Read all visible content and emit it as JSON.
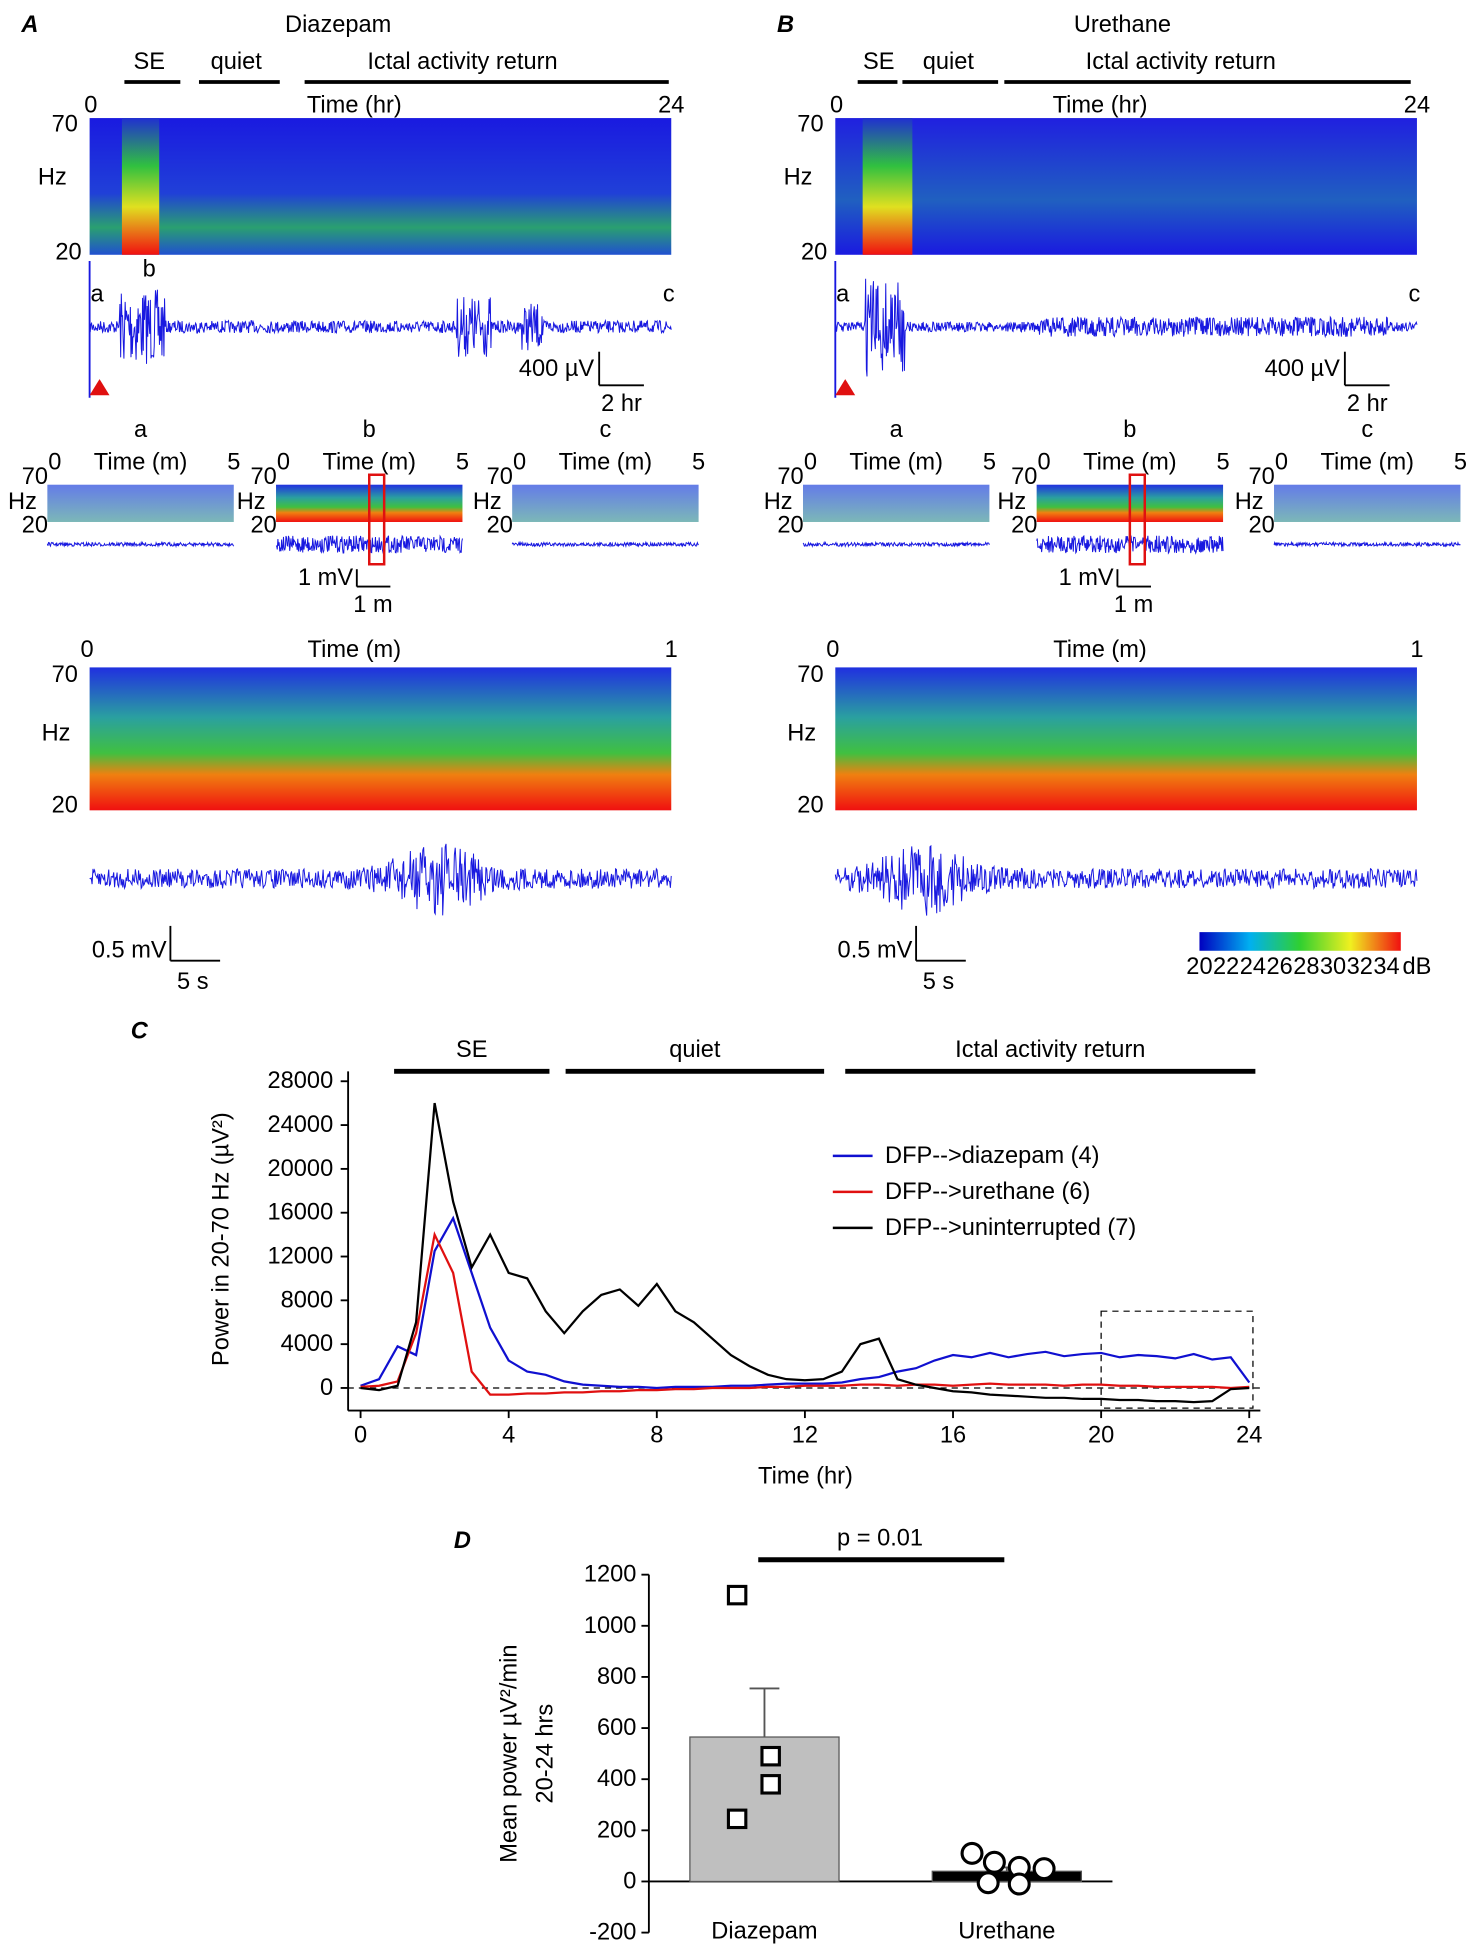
{
  "panel_a": {
    "label": "A",
    "title": "Diazepam",
    "phases": [
      "SE",
      "quiet",
      "Ictal activity return"
    ],
    "overview": {
      "x_start": "0",
      "x_label": "Time (hr)",
      "x_end": "24",
      "y_top": "70",
      "y_unit": "Hz",
      "y_bottom": "20",
      "markers": [
        "a",
        "b",
        "c"
      ],
      "scale_v": "400 µV",
      "scale_t": "2 hr"
    },
    "epochs": [
      {
        "label": "a",
        "x_start": "0",
        "x_label": "Time (m)",
        "x_end": "5",
        "y_top": "70",
        "y_unit": "Hz",
        "y_bottom": "20"
      },
      {
        "label": "b",
        "x_start": "0",
        "x_label": "Time (m)",
        "x_end": "5",
        "y_top": "70",
        "y_unit": "Hz",
        "y_bottom": "20"
      },
      {
        "label": "c",
        "x_start": "0",
        "x_label": "Time (m)",
        "x_end": "5",
        "y_top": "70",
        "y_unit": "Hz",
        "y_bottom": "20"
      }
    ],
    "epoch_scale_v": "1 mV",
    "epoch_scale_t": "1 m",
    "zoom": {
      "x_start": "0",
      "x_label": "Time (m)",
      "x_end": "1",
      "y_top": "70",
      "y_unit": "Hz",
      "y_bottom": "20",
      "scale_v": "0.5 mV",
      "scale_t": "5 s"
    }
  },
  "panel_b": {
    "label": "B",
    "title": "Urethane",
    "phases": [
      "SE",
      "quiet",
      "Ictal activity return"
    ],
    "overview": {
      "x_start": "0",
      "x_label": "Time (hr)",
      "x_end": "24",
      "y_top": "70",
      "y_unit": "Hz",
      "y_bottom": "20",
      "markers": [
        "a",
        "b",
        "c"
      ],
      "scale_v": "400 µV",
      "scale_t": "2 hr"
    },
    "epochs": [
      {
        "label": "a",
        "x_start": "0",
        "x_label": "Time (m)",
        "x_end": "5",
        "y_top": "70",
        "y_unit": "Hz",
        "y_bottom": "20"
      },
      {
        "label": "b",
        "x_start": "0",
        "x_label": "Time (m)",
        "x_end": "5",
        "y_top": "70",
        "y_unit": "Hz",
        "y_bottom": "20"
      },
      {
        "label": "c",
        "x_start": "0",
        "x_label": "Time (m)",
        "x_end": "5",
        "y_top": "70",
        "y_unit": "Hz",
        "y_bottom": "20"
      }
    ],
    "epoch_scale_v": "1 mV",
    "epoch_scale_t": "1 m",
    "zoom": {
      "x_start": "0",
      "x_label": "Time (m)",
      "x_end": "1",
      "y_top": "70",
      "y_unit": "Hz",
      "y_bottom": "20",
      "scale_v": "0.5 mV",
      "scale_t": "5 s"
    },
    "colorbar": {
      "ticks": [
        "20",
        "22",
        "24",
        "26",
        "28",
        "30",
        "32",
        "34"
      ],
      "unit": "dB"
    }
  },
  "chart_data": [
    {
      "type": "line",
      "label": "C",
      "phases": [
        "SE",
        "quiet",
        "Ictal activity return"
      ],
      "x_label": "Time (hr)",
      "y_label": "Power in 20-70 Hz (µV²)",
      "x": [
        0,
        0.5,
        1,
        1.5,
        2,
        2.5,
        3,
        3.5,
        4,
        4.5,
        5,
        5.5,
        6,
        6.5,
        7,
        7.5,
        8,
        8.5,
        9,
        9.5,
        10,
        10.5,
        11,
        11.5,
        12,
        12.5,
        13,
        13.5,
        14,
        14.5,
        15,
        15.5,
        16,
        16.5,
        17,
        17.5,
        18,
        18.5,
        19,
        19.5,
        20,
        20.5,
        21,
        21.5,
        22,
        22.5,
        23,
        23.5,
        24
      ],
      "series": [
        {
          "name": "DFP-->diazepam (4)",
          "color": "#1010d0",
          "values": [
            200,
            800,
            3800,
            3000,
            12500,
            15500,
            10500,
            5500,
            2500,
            1500,
            1200,
            600,
            300,
            200,
            100,
            100,
            0,
            100,
            100,
            100,
            200,
            200,
            300,
            400,
            400,
            400,
            500,
            800,
            1000,
            1500,
            1800,
            2500,
            3000,
            2800,
            3200,
            2800,
            3100,
            3300,
            2900,
            3100,
            3200,
            2800,
            3000,
            2900,
            2700,
            3100,
            2600,
            2800,
            500
          ]
        },
        {
          "name": "DFP-->urethane (6)",
          "color": "#e01010",
          "values": [
            100,
            200,
            600,
            5000,
            14000,
            10500,
            1500,
            -600,
            -600,
            -500,
            -500,
            -400,
            -400,
            -300,
            -300,
            -200,
            -200,
            -100,
            -100,
            0,
            0,
            0,
            100,
            100,
            200,
            200,
            200,
            300,
            300,
            200,
            300,
            300,
            200,
            300,
            400,
            300,
            300,
            300,
            200,
            300,
            300,
            200,
            200,
            100,
            100,
            100,
            100,
            0,
            100
          ]
        },
        {
          "name": "DFP-->uninterrupted (7)",
          "color": "#000000",
          "values": [
            0,
            -200,
            200,
            6000,
            26000,
            17000,
            11000,
            14000,
            10500,
            10000,
            7000,
            5000,
            7000,
            8500,
            9000,
            7500,
            9500,
            7000,
            6000,
            4500,
            3000,
            2000,
            1200,
            800,
            700,
            800,
            1500,
            4000,
            4500,
            800,
            300,
            0,
            -300,
            -400,
            -600,
            -700,
            -800,
            -900,
            -900,
            -1000,
            -1000,
            -1100,
            -1100,
            -1200,
            -1200,
            -1300,
            -1200,
            -100,
            0
          ]
        }
      ],
      "xlim": [
        -0.35,
        24.3
      ],
      "ylim": [
        -1500,
        28000
      ],
      "xticks": [
        0,
        4,
        8,
        12,
        16,
        20,
        24
      ],
      "yticks": [
        0,
        4000,
        8000,
        12000,
        16000,
        20000,
        24000,
        28000
      ],
      "highlight_x": [
        20,
        24.1
      ],
      "legend": "upper-right"
    },
    {
      "type": "bar",
      "label": "D",
      "categories": [
        "Diazepam",
        "Urethane"
      ],
      "values": [
        565,
        40
      ],
      "errors": [
        190,
        15
      ],
      "colors": [
        "#bfbfbf",
        "#000000"
      ],
      "points": [
        [
          1120,
          490,
          380,
          245
        ],
        [
          110,
          75,
          55,
          50,
          -5,
          -10
        ]
      ],
      "y_label": [
        "Mean power µV²/min",
        "20-24 hrs"
      ],
      "annotation": "p = 0.01",
      "ylim": [
        -200,
        1200
      ],
      "yticks": [
        -200,
        0,
        200,
        400,
        600,
        800,
        1000,
        1200
      ]
    }
  ]
}
